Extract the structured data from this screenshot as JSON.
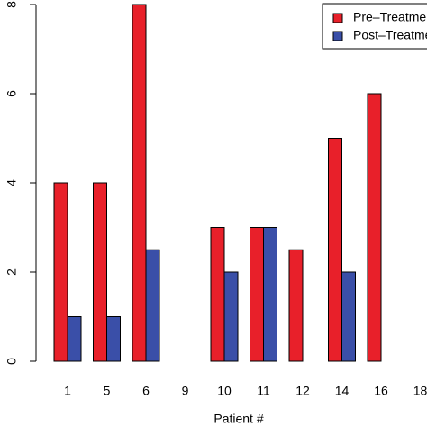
{
  "chart_data": {
    "type": "bar",
    "x_label": "Patient #",
    "categories": [
      "1",
      "5",
      "6",
      "9",
      "10",
      "11",
      "12",
      "14",
      "16",
      "18"
    ],
    "series": [
      {
        "name": "Pre–Treatment",
        "color": "#e8202a",
        "values": [
          4,
          4,
          8,
          0,
          3,
          3,
          2.5,
          5,
          6,
          0
        ]
      },
      {
        "name": "Post–Treatment",
        "color": "#3a4fa8",
        "values": [
          1,
          1,
          2.5,
          0,
          2,
          3,
          0,
          2,
          0,
          0
        ]
      }
    ],
    "ylim": [
      0,
      8
    ],
    "yticks": [
      0,
      2,
      4,
      6,
      8
    ],
    "legend": "top-right"
  }
}
